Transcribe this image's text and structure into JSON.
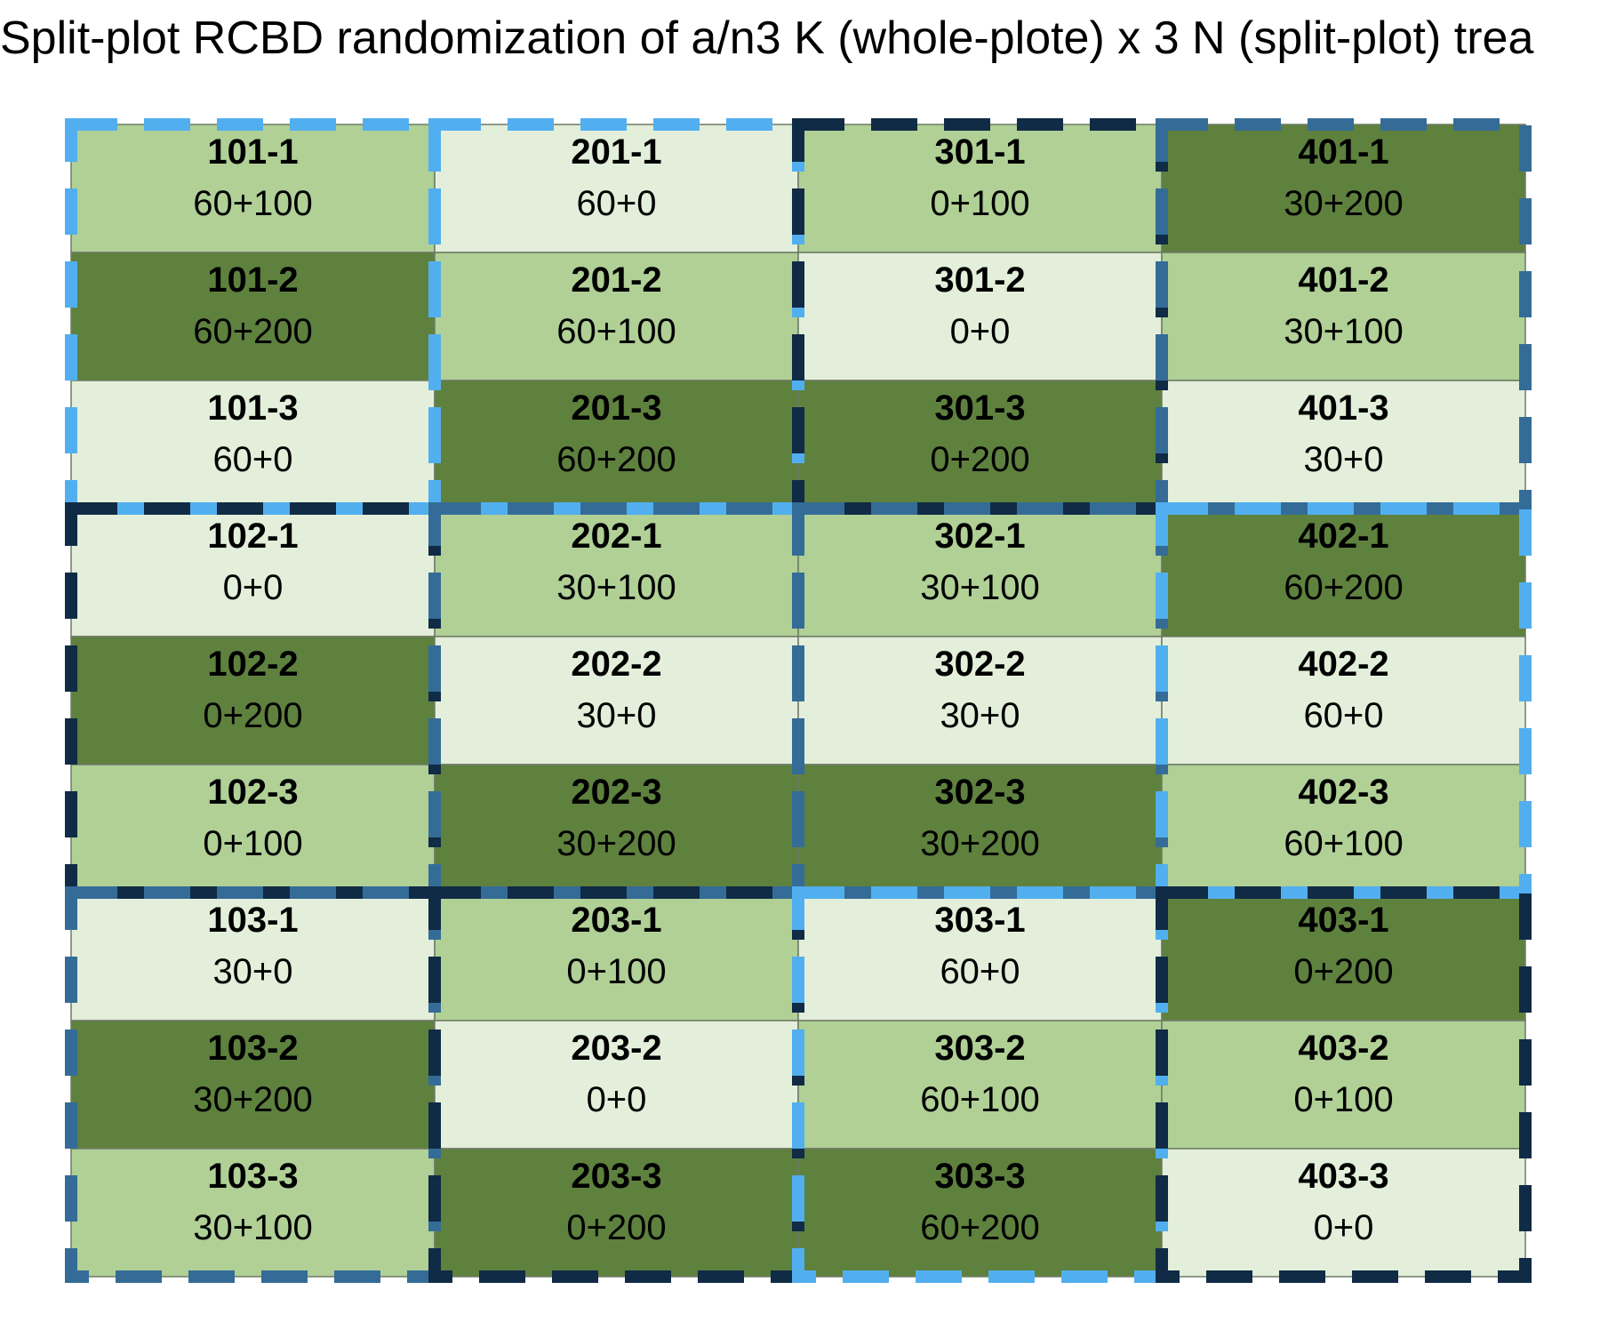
{
  "title": "Split-plot RCBD randomization of a/n3 K (whole-plote) x 3 N (split-plot) trea",
  "colors": {
    "fill_by_n": {
      "0": "#E3EFDA",
      "100": "#B0D096",
      "200": "#5E813E"
    },
    "cell_stroke": "#6E7A66",
    "whole_plot_border": {
      "0": "#102B45",
      "30": "#346C97",
      "60": "#52AFEF"
    },
    "text": "#000000"
  },
  "columns": [
    [
      {
        "id": "101-1",
        "label": "60+100",
        "k": 60,
        "n": 100
      },
      {
        "id": "101-2",
        "label": "60+200",
        "k": 60,
        "n": 200
      },
      {
        "id": "101-3",
        "label": "60+0",
        "k": 60,
        "n": 0
      },
      {
        "id": "102-1",
        "label": "0+0",
        "k": 0,
        "n": 0
      },
      {
        "id": "102-2",
        "label": "0+200",
        "k": 0,
        "n": 200
      },
      {
        "id": "102-3",
        "label": "0+100",
        "k": 0,
        "n": 100
      },
      {
        "id": "103-1",
        "label": "30+0",
        "k": 30,
        "n": 0
      },
      {
        "id": "103-2",
        "label": "30+200",
        "k": 30,
        "n": 200
      },
      {
        "id": "103-3",
        "label": "30+100",
        "k": 30,
        "n": 100
      }
    ],
    [
      {
        "id": "201-1",
        "label": "60+0",
        "k": 60,
        "n": 0
      },
      {
        "id": "201-2",
        "label": "60+100",
        "k": 60,
        "n": 100
      },
      {
        "id": "201-3",
        "label": "60+200",
        "k": 60,
        "n": 200
      },
      {
        "id": "202-1",
        "label": "30+100",
        "k": 30,
        "n": 100
      },
      {
        "id": "202-2",
        "label": "30+0",
        "k": 30,
        "n": 0
      },
      {
        "id": "202-3",
        "label": "30+200",
        "k": 30,
        "n": 200
      },
      {
        "id": "203-1",
        "label": "0+100",
        "k": 0,
        "n": 100
      },
      {
        "id": "203-2",
        "label": "0+0",
        "k": 0,
        "n": 0
      },
      {
        "id": "203-3",
        "label": "0+200",
        "k": 0,
        "n": 200
      }
    ],
    [
      {
        "id": "301-1",
        "label": "0+100",
        "k": 0,
        "n": 100
      },
      {
        "id": "301-2",
        "label": "0+0",
        "k": 0,
        "n": 0
      },
      {
        "id": "301-3",
        "label": "0+200",
        "k": 0,
        "n": 200
      },
      {
        "id": "302-1",
        "label": "30+100",
        "k": 30,
        "n": 100
      },
      {
        "id": "302-2",
        "label": "30+0",
        "k": 30,
        "n": 0
      },
      {
        "id": "302-3",
        "label": "30+200",
        "k": 30,
        "n": 200
      },
      {
        "id": "303-1",
        "label": "60+0",
        "k": 60,
        "n": 0
      },
      {
        "id": "303-2",
        "label": "60+100",
        "k": 60,
        "n": 100
      },
      {
        "id": "303-3",
        "label": "60+200",
        "k": 60,
        "n": 200
      }
    ],
    [
      {
        "id": "401-1",
        "label": "30+200",
        "k": 30,
        "n": 200
      },
      {
        "id": "401-2",
        "label": "30+100",
        "k": 30,
        "n": 100
      },
      {
        "id": "401-3",
        "label": "30+0",
        "k": 30,
        "n": 0
      },
      {
        "id": "402-1",
        "label": "60+200",
        "k": 60,
        "n": 200
      },
      {
        "id": "402-2",
        "label": "60+0",
        "k": 60,
        "n": 0
      },
      {
        "id": "402-3",
        "label": "60+100",
        "k": 60,
        "n": 100
      },
      {
        "id": "403-1",
        "label": "0+200",
        "k": 0,
        "n": 200
      },
      {
        "id": "403-2",
        "label": "0+100",
        "k": 0,
        "n": 100
      },
      {
        "id": "403-3",
        "label": "0+0",
        "k": 0,
        "n": 0
      }
    ]
  ]
}
